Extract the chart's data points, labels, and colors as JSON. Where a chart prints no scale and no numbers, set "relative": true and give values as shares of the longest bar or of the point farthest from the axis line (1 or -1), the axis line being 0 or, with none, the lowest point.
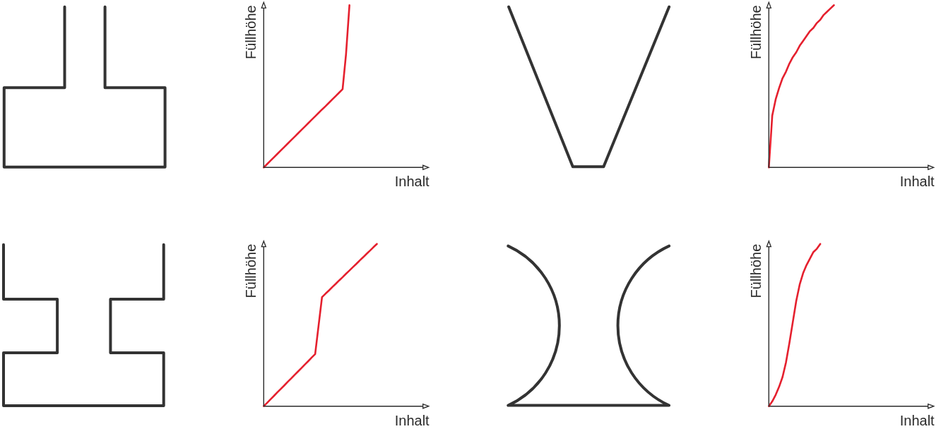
{
  "chart_data": [
    {
      "type": "line",
      "xlabel": "Inhalt",
      "ylabel": "Füllhöhe",
      "relative": true,
      "categories": [
        null,
        null,
        null,
        null,
        null,
        null,
        null,
        null,
        null,
        null,
        null,
        null,
        null,
        null,
        null,
        null,
        null,
        null,
        null,
        null,
        null,
        null,
        null,
        null,
        null,
        null,
        null,
        null,
        null,
        null,
        null,
        null,
        null,
        null,
        null,
        null,
        null,
        null,
        null,
        null,
        null,
        null,
        null,
        null,
        null,
        null,
        null,
        null,
        null
      ],
      "series": [
        {
          "color": "#e5202e",
          "values": [
            0,
            0.021,
            0.042,
            0.063,
            0.084,
            0.105,
            0.126,
            0.147,
            0.168,
            0.189,
            0.21,
            0.231,
            0.252,
            0.273,
            0.294,
            0.315,
            0.336,
            0.357,
            0.377,
            0.398,
            0.419,
            0.44,
            0.461,
            0.482,
            0.698,
            1,
            null,
            null,
            null,
            null,
            null,
            null,
            null,
            null,
            null,
            null,
            null,
            null,
            null,
            null,
            null,
            null,
            null,
            null,
            null,
            null,
            null,
            null,
            null
          ]
        }
      ]
    },
    {
      "type": "line",
      "xlabel": "Inhalt",
      "ylabel": "Füllhöhe",
      "relative": true,
      "categories": [
        null,
        null,
        null,
        null,
        null,
        null,
        null,
        null,
        null,
        null,
        null,
        null,
        null,
        null,
        null,
        null,
        null,
        null,
        null,
        null,
        null,
        null,
        null,
        null,
        null,
        null,
        null,
        null,
        null,
        null,
        null,
        null,
        null,
        null,
        null,
        null,
        null,
        null,
        null,
        null,
        null,
        null,
        null,
        null,
        null,
        null,
        null,
        null,
        null
      ],
      "series": [
        {
          "color": "#e5202e",
          "values": [
            0,
            0.32,
            0.42,
            0.49,
            0.55,
            0.59,
            0.64,
            0.68,
            0.71,
            0.75,
            0.78,
            0.81,
            0.84,
            0.86,
            0.89,
            0.91,
            0.94,
            0.96,
            0.98,
            1,
            null,
            null,
            null,
            null,
            null,
            null,
            null,
            null,
            null,
            null,
            null,
            null,
            null,
            null,
            null,
            null,
            null,
            null,
            null,
            null,
            null,
            null,
            null,
            null,
            null,
            null,
            null,
            null,
            null
          ]
        }
      ]
    },
    {
      "type": "line",
      "xlabel": "Inhalt",
      "ylabel": "Füllhöhe",
      "relative": true,
      "categories": [
        null,
        null,
        null,
        null,
        null,
        null,
        null,
        null,
        null,
        null,
        null,
        null,
        null,
        null,
        null,
        null,
        null,
        null,
        null,
        null,
        null,
        null,
        null,
        null,
        null,
        null,
        null,
        null,
        null,
        null,
        null,
        null,
        null,
        null,
        null,
        null,
        null,
        null,
        null,
        null,
        null,
        null,
        null,
        null,
        null,
        null,
        null,
        null,
        null
      ],
      "series": [
        {
          "color": "#e5202e",
          "values": [
            0,
            0.021,
            0.043,
            0.064,
            0.086,
            0.107,
            0.128,
            0.15,
            0.171,
            0.193,
            0.214,
            0.235,
            0.257,
            0.278,
            0.3,
            0.321,
            0.497,
            0.672,
            0.693,
            0.713,
            0.734,
            0.754,
            0.775,
            0.795,
            0.816,
            0.836,
            0.857,
            0.877,
            0.898,
            0.918,
            0.939,
            0.959,
            0.98,
            1,
            null,
            null,
            null,
            null,
            null,
            null,
            null,
            null,
            null,
            null,
            null,
            null,
            null,
            null,
            null
          ]
        }
      ]
    },
    {
      "type": "line",
      "xlabel": "Inhalt",
      "ylabel": "Füllhöhe",
      "relative": true,
      "categories": [
        null,
        null,
        null,
        null,
        null,
        null,
        null,
        null,
        null,
        null,
        null,
        null,
        null,
        null,
        null,
        null,
        null,
        null,
        null,
        null,
        null,
        null,
        null,
        null,
        null,
        null,
        null,
        null,
        null,
        null,
        null,
        null,
        null,
        null,
        null,
        null,
        null,
        null,
        null,
        null,
        null,
        null,
        null,
        null,
        null,
        null,
        null,
        null,
        null
      ],
      "series": [
        {
          "color": "#e5202e",
          "values": [
            0,
            0.03,
            0.07,
            0.12,
            0.18,
            0.27,
            0.39,
            0.52,
            0.65,
            0.75,
            0.82,
            0.87,
            0.91,
            0.95,
            0.97,
            1,
            null,
            null,
            null,
            null,
            null,
            null,
            null,
            null,
            null,
            null,
            null,
            null,
            null,
            null,
            null,
            null,
            null,
            null,
            null,
            null,
            null,
            null,
            null,
            null,
            null,
            null,
            null,
            null,
            null,
            null,
            null,
            null,
            null
          ]
        }
      ]
    }
  ]
}
